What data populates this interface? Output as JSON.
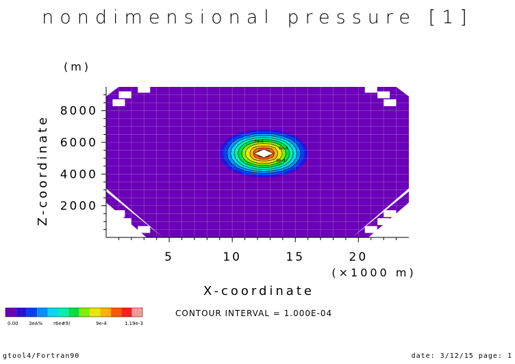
{
  "title": "nondimensional pressure [1]",
  "footer": {
    "left": "gtool4/Fortran90",
    "right": "date: 3/12/15 page: 1"
  },
  "contour_interval": "CONTOUR INTERVAL = 1.000E-04",
  "colorbar": {
    "colors": [
      "#6a00b8",
      "#2a10d8",
      "#0040f0",
      "#0090ff",
      "#00d8f0",
      "#00f0b0",
      "#00e040",
      "#80f000",
      "#e8e800",
      "#ffb000",
      "#ff5800",
      "#ff1e1e",
      "#ff9a9a"
    ],
    "labels": [
      "0.00",
      "3eA%",
      "r6e#9)",
      "9e-4",
      "1.19e-3"
    ]
  },
  "chart_data": {
    "type": "heatmap",
    "title": "nondimensional pressure [1]",
    "xlabel": "X-coordinate",
    "xunit": "(×1000 m)",
    "ylabel": "Z-coordinate",
    "yunit": "(m)",
    "xlim": [
      0,
      24
    ],
    "ylim": [
      0,
      9500
    ],
    "x_ticks": [
      5,
      10,
      15,
      20
    ],
    "y_ticks": [
      2000,
      4000,
      6000,
      8000
    ],
    "grid": true,
    "background_color": "#6a00b8",
    "field": {
      "shape": "elliptical blob",
      "center": [
        12.5,
        5300
      ],
      "semi_axes": [
        3.6,
        1550
      ],
      "max_value": 0.00119,
      "min_value": 0.0,
      "contour_interval": 0.0001
    },
    "contour_labels": [
      "6e-4",
      "7e-4",
      "8e-4"
    ]
  }
}
